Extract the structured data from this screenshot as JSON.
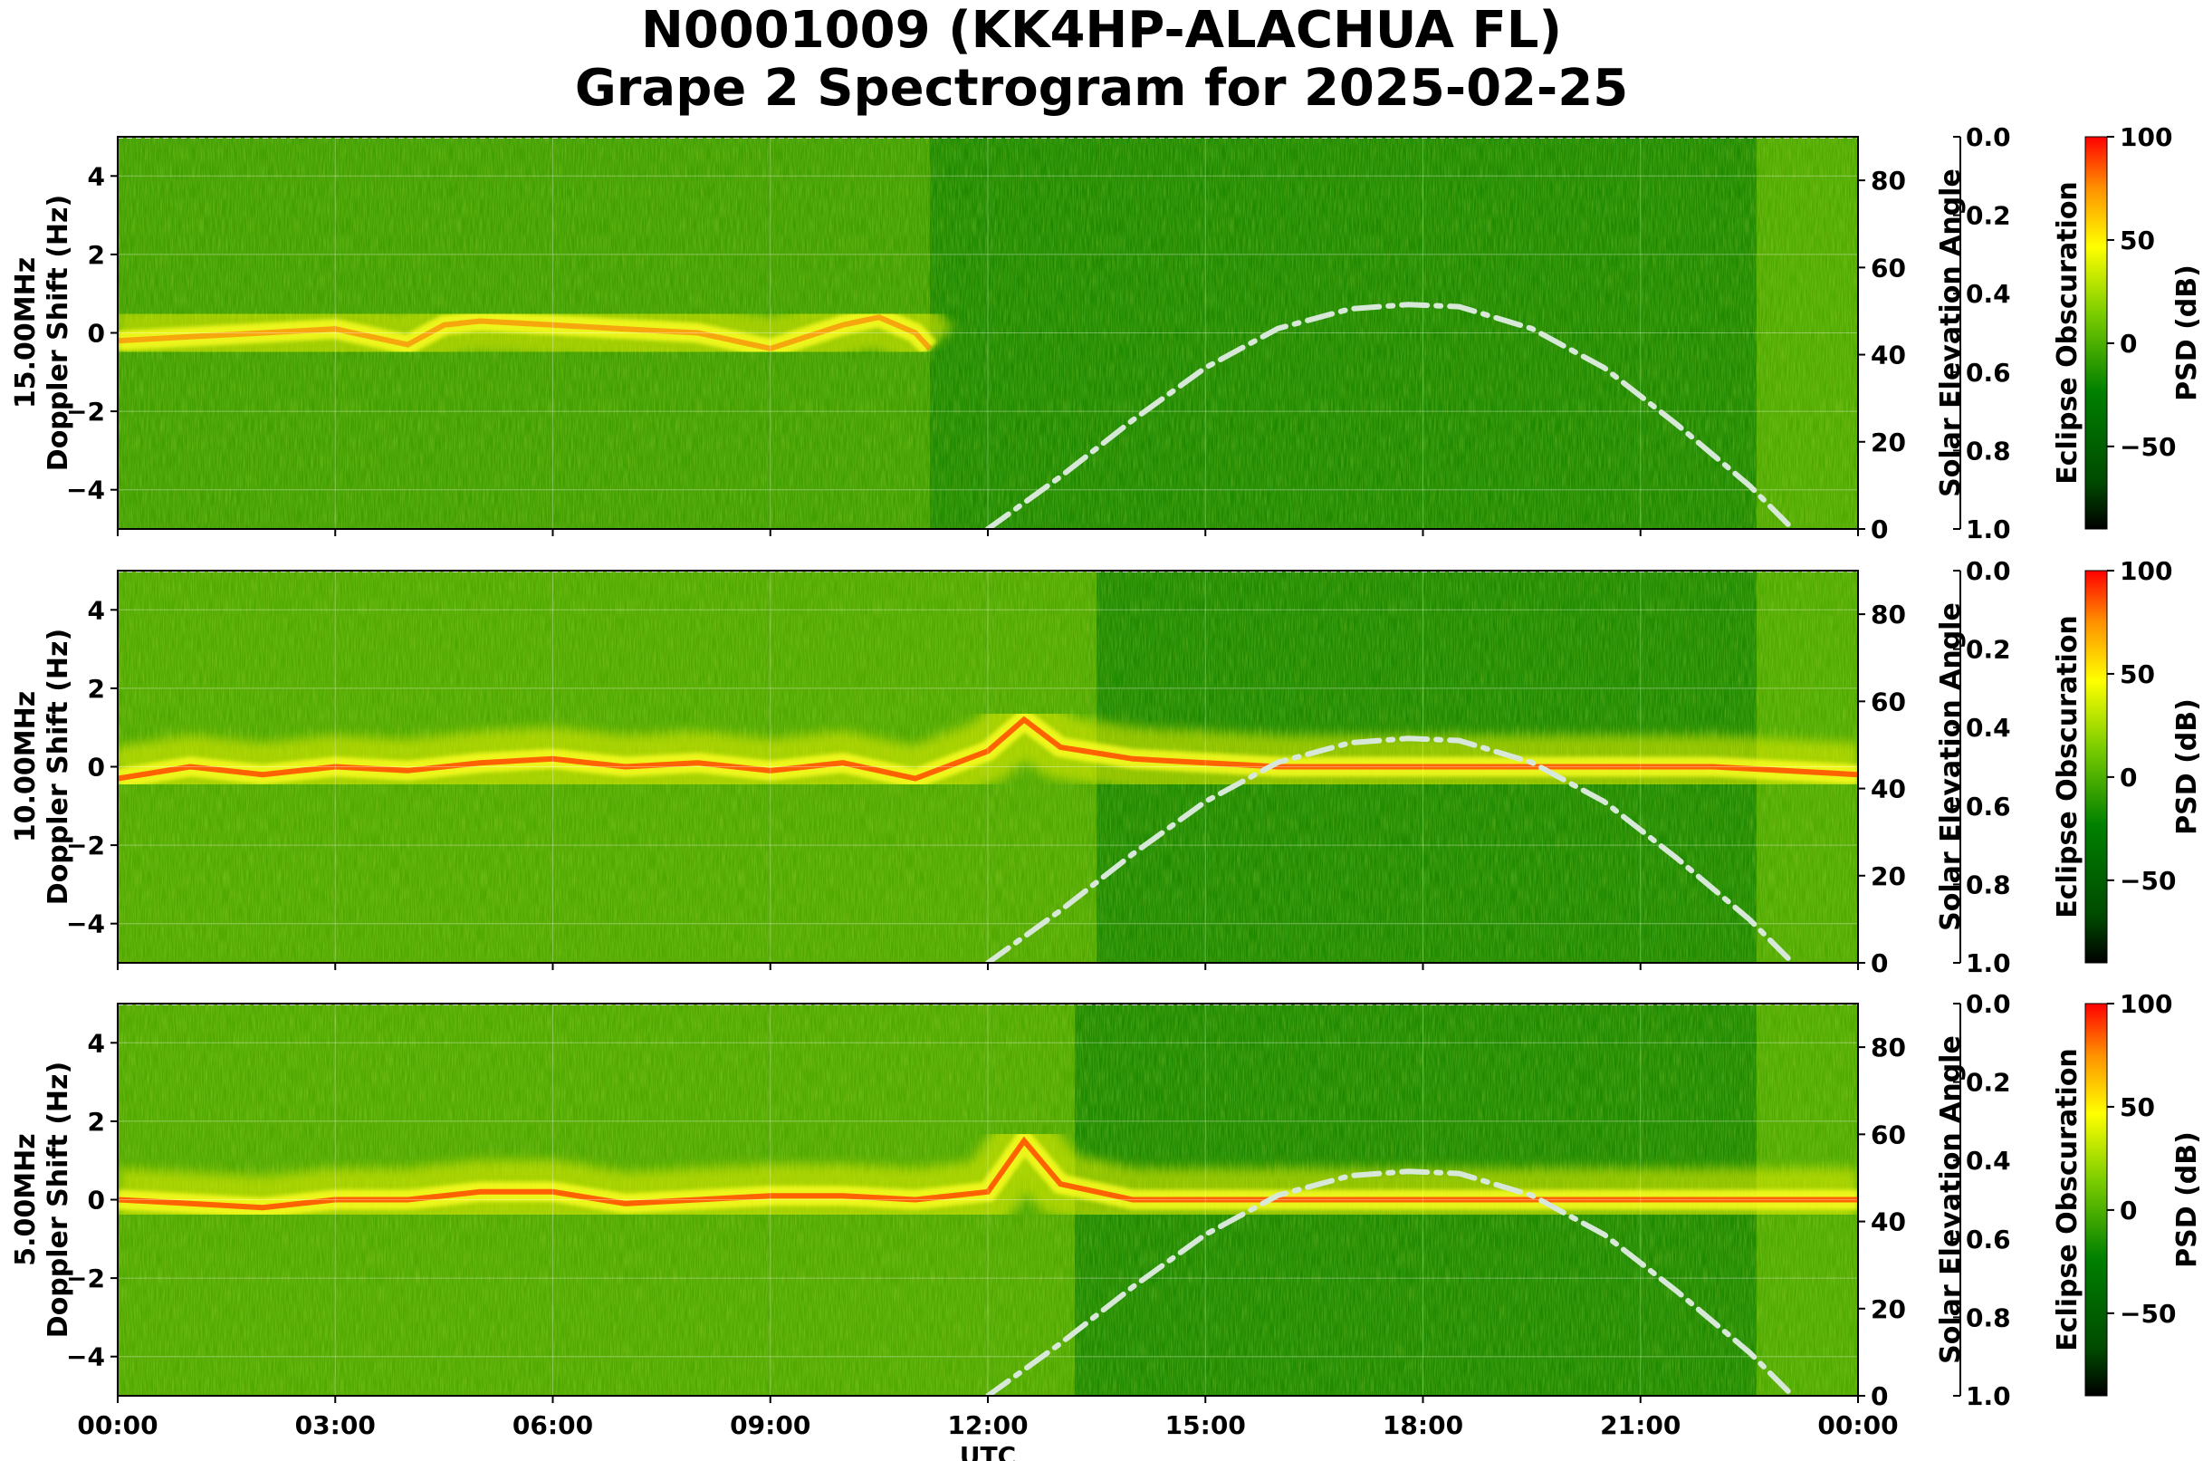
{
  "title_line1": "N0001009 (KK4HP-ALACHUA FL)",
  "title_line2": "Grape 2 Spectrogram for 2025-02-25",
  "chart_data": {
    "type": "heatmap",
    "xlabel": "UTC",
    "x_tick_labels": [
      "00:00",
      "03:00",
      "06:00",
      "09:00",
      "12:00",
      "15:00",
      "18:00",
      "21:00",
      "00:00"
    ],
    "xlim_hours": [
      0,
      24
    ],
    "ylim": [
      -5,
      5
    ],
    "y_ticks": [
      -4,
      -2,
      0,
      2,
      4
    ],
    "y_tick_labels": [
      "−4",
      "−2",
      "0",
      "2",
      "4"
    ],
    "right_axis_label": "Solar Elevation Angle",
    "right_axis_ylim": [
      0,
      90
    ],
    "right_axis_ticks": [
      0,
      20,
      40,
      60,
      80
    ],
    "eclipse_axis_label": "Eclipse Obscuration",
    "eclipse_axis_ylim": [
      1.0,
      0.0
    ],
    "eclipse_ticks": [
      "0.0",
      "0.2",
      "0.4",
      "0.6",
      "0.8",
      "1.0"
    ],
    "colorbar_label": "PSD (dB)",
    "colorbar_range": [
      -90,
      100
    ],
    "colorbar_ticks": [
      100,
      50,
      0,
      -50
    ],
    "colorbar_tick_labels": [
      "100",
      "50",
      "0",
      "−50"
    ],
    "colorbar_colors": [
      "#000000",
      "#006400",
      "#00c000",
      "#ffff00",
      "#ff8c00",
      "#ff0000"
    ],
    "solar_elevation_curve": {
      "hours": [
        12,
        13,
        14,
        15,
        16,
        17,
        17.8,
        18.5,
        19.5,
        20.5,
        21.5,
        22.5,
        23.1
      ],
      "degrees": [
        0,
        12,
        25,
        37,
        46,
        50.5,
        51.5,
        51,
        46,
        37,
        24,
        10,
        0
      ],
      "color": "#d8e8d8",
      "style": "dash-dot"
    },
    "panels": [
      {
        "ylabel_freq": "15.00MHz",
        "ylabel": "Doppler Shift (Hz)",
        "carrier_trace": {
          "hours": [
            0,
            1,
            2,
            3,
            4,
            4.5,
            5,
            6,
            7,
            8,
            9,
            10,
            10.5,
            11,
            11.2
          ],
          "hz": [
            -0.2,
            -0.1,
            0,
            0.1,
            -0.3,
            0.2,
            0.3,
            0.2,
            0.1,
            0,
            -0.4,
            0.2,
            0.4,
            0,
            -0.4
          ]
        }
      },
      {
        "ylabel_freq": "10.00MHz",
        "ylabel": "Doppler Shift (Hz)",
        "carrier_trace": {
          "hours": [
            0,
            1,
            2,
            3,
            4,
            5,
            6,
            7,
            8,
            9,
            10,
            11,
            12,
            12.5,
            13,
            14,
            16,
            18,
            20,
            22,
            24
          ],
          "hz": [
            -0.3,
            0,
            -0.2,
            0,
            -0.1,
            0.1,
            0.2,
            0,
            0.1,
            -0.1,
            0.1,
            -0.3,
            0.4,
            1.2,
            0.5,
            0.2,
            0,
            0,
            0,
            0,
            -0.2
          ]
        }
      },
      {
        "ylabel_freq": "5.00MHz",
        "ylabel": "Doppler Shift (Hz)",
        "carrier_trace": {
          "hours": [
            0,
            1,
            2,
            3,
            4,
            5,
            6,
            7,
            8,
            9,
            10,
            11,
            12,
            12.5,
            13,
            14,
            16,
            18,
            20,
            22,
            24
          ],
          "hz": [
            0,
            -0.1,
            -0.2,
            0,
            0,
            0.2,
            0.2,
            -0.1,
            0,
            0.1,
            0.1,
            0,
            0.2,
            1.5,
            0.4,
            0,
            0,
            0,
            0,
            0,
            0
          ]
        }
      }
    ]
  }
}
